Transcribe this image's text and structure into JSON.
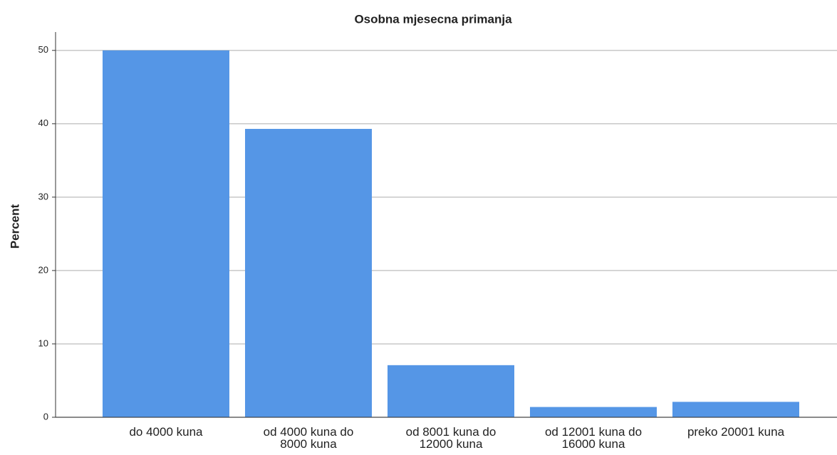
{
  "chart_data": {
    "type": "bar",
    "title": "Osobna mjesecna primanja",
    "ylabel": "Percent",
    "categories": [
      "do 4000 kuna",
      "od 4000 kuna do 8000 kuna",
      "od 8001 kuna do 12000 kuna",
      "od 12001 kuna do 16000 kuna",
      "preko 20001 kuna"
    ],
    "values": [
      50,
      39.3,
      7.1,
      1.4,
      2.1
    ],
    "color": "#5596e6",
    "ylim": [
      0,
      52.5
    ],
    "yticks": [
      0,
      10,
      20,
      30,
      40,
      50
    ],
    "grid": true
  }
}
